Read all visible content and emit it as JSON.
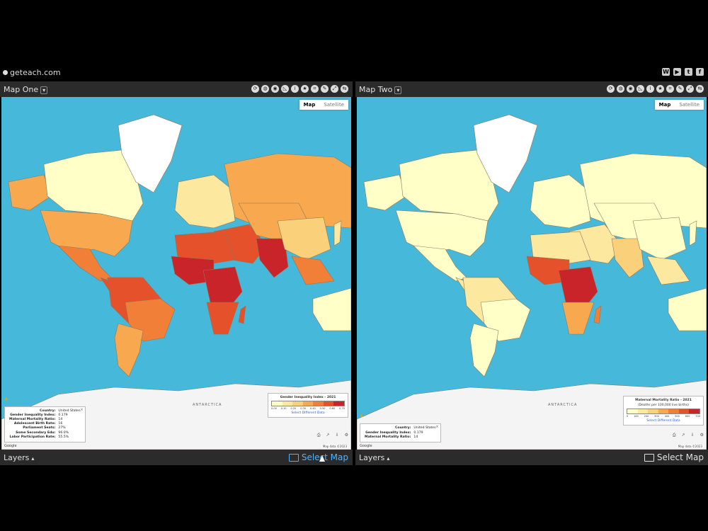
{
  "site": {
    "brand": "geteach.com",
    "social_icons": [
      "wordpress-icon",
      "youtube-icon",
      "twitter-icon",
      "facebook-icon"
    ]
  },
  "maps": [
    {
      "title": "Map One",
      "map_type": {
        "map": "Map",
        "satellite": "Satellite"
      },
      "antarctica_label": "ANTARCTICA",
      "info": [
        {
          "k": "Country:",
          "v": "United States"
        },
        {
          "k": "Gender Inequality Index:",
          "v": "0.179"
        },
        {
          "k": "Maternal Mortality Ratio:",
          "v": "14"
        },
        {
          "k": "Adolescent Birth Rate:",
          "v": "16"
        },
        {
          "k": "Parliament Seats:",
          "v": "27%"
        },
        {
          "k": "Some Secondary Edu:",
          "v": "96.0%"
        },
        {
          "k": "Labor Participation Rate:",
          "v": "55.5%"
        }
      ],
      "legend": {
        "title": "Gender Inequality Index - 2021",
        "ticks": [
          "0.00",
          "0.10",
          "0.20",
          "0.30",
          "0.40",
          "0.50",
          "0.60",
          "0.70"
        ],
        "colors": [
          "#ffffc8",
          "#fde8a0",
          "#fbd07a",
          "#f8a94f",
          "#f27f37",
          "#e4512b",
          "#c8242a"
        ],
        "link": "Select Different Data"
      },
      "footer_left": "Google",
      "footer_right": "Map data ©2023",
      "layers_label": "Layers",
      "select_label": "Select Map"
    },
    {
      "title": "Map Two",
      "map_type": {
        "map": "Map",
        "satellite": "Satellite"
      },
      "antarctica_label": "ANTARCTICA",
      "info": [
        {
          "k": "Country:",
          "v": "United States"
        },
        {
          "k": "Gender Inequality Index:",
          "v": "0.179"
        },
        {
          "k": "Maternal Mortality Ratio:",
          "v": "14"
        }
      ],
      "legend": {
        "title": "Maternal Mortality Ratio - 2021",
        "subtitle": "(Deaths per 100,000 live births)",
        "ticks": [
          "0",
          "100",
          "200",
          "300",
          "400",
          "500",
          "600",
          "700"
        ],
        "colors": [
          "#ffffc8",
          "#fde8a0",
          "#fbd07a",
          "#f8a94f",
          "#f27f37",
          "#e4512b",
          "#c8242a"
        ],
        "link": "Select Different Data"
      },
      "footer_left": "Google",
      "footer_right": "Map data ©2023",
      "layers_label": "Layers",
      "select_label": "Select Map"
    }
  ]
}
